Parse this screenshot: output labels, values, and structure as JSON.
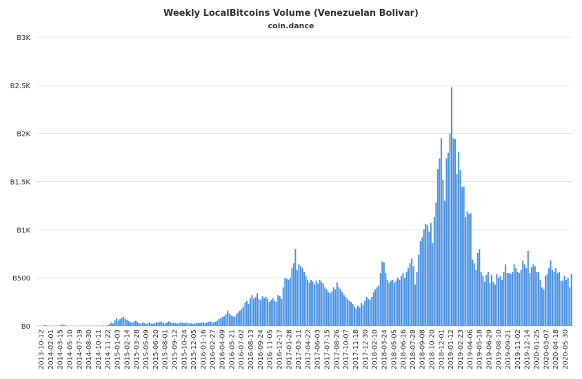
{
  "title": "Weekly LocalBitcoins Volume (Venezuelan Bolivar)",
  "subtitle": "coin.dance",
  "chart_data": {
    "type": "bar",
    "title": "Weekly LocalBitcoins Volume (Venezuelan Bolivar)",
    "subtitle": "coin.dance",
    "xlabel": "",
    "ylabel": "",
    "ylim": [
      0,
      3000
    ],
    "y_ticks": [
      0,
      500,
      1000,
      1500,
      2000,
      2500,
      3000
    ],
    "y_tick_labels": [
      "B0",
      "B500",
      "B1K",
      "B1.5K",
      "B2K",
      "B2.5K",
      "B3K"
    ],
    "x_tick_labels": [
      "2013-10-12",
      "2014-02-01",
      "2014-03-15",
      "2014-05-10",
      "2014-07-19",
      "2014-08-30",
      "2014-10-11",
      "2014-11-22",
      "2015-01-03",
      "2015-02-14",
      "2015-03-28",
      "2015-05-09",
      "2015-06-20",
      "2015-08-01",
      "2015-09-12",
      "2015-10-24",
      "2015-12-05",
      "2016-01-16",
      "2016-02-27",
      "2016-04-09",
      "2016-05-21",
      "2016-07-02",
      "2016-08-13",
      "2016-09-24",
      "2016-11-05",
      "2016-12-17",
      "2017-01-28",
      "2017-03-11",
      "2017-04-22",
      "2017-06-03",
      "2017-07-15",
      "2017-08-26",
      "2017-10-07",
      "2017-11-18",
      "2017-12-30",
      "2018-02-10",
      "2018-03-24",
      "2018-05-05",
      "2018-06-16",
      "2018-07-28",
      "2018-09-08",
      "2018-10-20",
      "2018-12-01",
      "2019-01-12",
      "2019-02-23",
      "2019-04-06",
      "2019-05-18",
      "2019-06-29",
      "2019-08-10",
      "2019-09-21",
      "2019-11-02",
      "2019-12-14",
      "2020-01-25",
      "2020-03-07",
      "2020-04-18",
      "2020-05-30"
    ],
    "grid": true,
    "legend": "none",
    "colors": {
      "bar": "#4a90e2",
      "grid": "#e6e6e6",
      "axis": "#cccccc",
      "text": "#333333"
    },
    "series": [
      {
        "values": [
          0,
          0,
          0,
          0,
          5,
          8,
          2,
          0,
          3,
          0,
          0,
          2,
          3,
          0,
          10,
          15,
          8,
          2,
          1,
          0,
          0,
          0,
          1,
          0,
          0,
          2,
          0,
          0,
          3,
          1,
          0,
          2,
          1,
          0,
          4,
          2,
          0,
          1,
          5,
          0,
          3,
          8,
          20,
          35,
          25,
          60,
          80,
          55,
          70,
          85,
          95,
          75,
          65,
          50,
          40,
          35,
          45,
          55,
          40,
          30,
          25,
          35,
          30,
          20,
          28,
          38,
          25,
          22,
          30,
          38,
          32,
          40,
          45,
          30,
          25,
          35,
          48,
          40,
          30,
          35,
          28,
          25,
          30,
          38,
          32,
          28,
          35,
          30,
          25,
          28,
          22,
          25,
          30,
          32,
          28,
          35,
          38,
          30,
          35,
          42,
          48,
          40,
          38,
          45,
          55,
          70,
          80,
          95,
          100,
          120,
          160,
          130,
          110,
          100,
          95,
          120,
          140,
          160,
          180,
          200,
          240,
          260,
          230,
          290,
          320,
          280,
          300,
          340,
          280,
          270,
          310,
          290,
          300,
          280,
          250,
          270,
          290,
          260,
          250,
          320,
          310,
          280,
          400,
          500,
          490,
          480,
          500,
          600,
          650,
          800,
          580,
          640,
          620,
          600,
          560,
          520,
          480,
          450,
          480,
          460,
          430,
          470,
          440,
          480,
          460,
          440,
          400,
          380,
          350,
          340,
          360,
          400,
          380,
          450,
          400,
          380,
          350,
          320,
          300,
          280,
          260,
          250,
          230,
          200,
          180,
          210,
          190,
          240,
          220,
          260,
          300,
          280,
          270,
          300,
          350,
          380,
          400,
          420,
          550,
          670,
          660,
          550,
          480,
          450,
          470,
          480,
          450,
          470,
          500,
          480,
          520,
          550,
          500,
          560,
          600,
          650,
          700,
          620,
          430,
          560,
          740,
          880,
          920,
          1000,
          1060,
          1050,
          980,
          1070,
          860,
          1130,
          1280,
          1630,
          1740,
          1950,
          1520,
          1300,
          1740,
          1800,
          2000,
          2480,
          1950,
          1940,
          1580,
          1810,
          1620,
          1440,
          1450,
          1130,
          1190,
          1160,
          1170,
          690,
          650,
          580,
          760,
          800,
          560,
          520,
          460,
          530,
          560,
          450,
          530,
          460,
          430,
          540,
          500,
          520,
          480,
          560,
          640,
          550,
          550,
          540,
          560,
          640,
          600,
          560,
          550,
          580,
          680,
          640,
          600,
          780,
          550,
          610,
          640,
          620,
          560,
          560,
          480,
          400,
          380,
          520,
          540,
          600,
          680,
          580,
          560,
          600,
          550,
          560,
          470,
          470,
          520,
          480,
          500,
          400,
          540
        ]
      }
    ]
  }
}
